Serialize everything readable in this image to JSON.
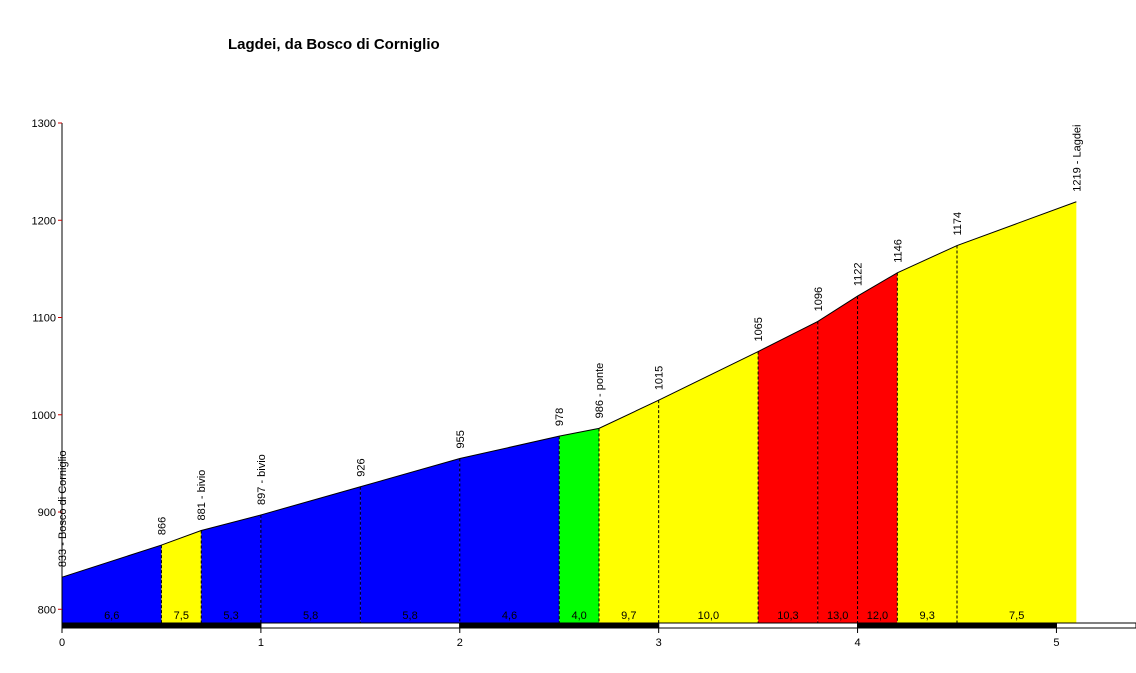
{
  "chart_data": {
    "type": "area",
    "title": "Lagdei, da Bosco di Corniglio",
    "xlabel": "",
    "ylabel": "",
    "xlim": [
      0,
      5.4
    ],
    "ylim": [
      790,
      1300
    ],
    "x_ticks": [
      "0",
      "1",
      "2",
      "3",
      "4",
      "5"
    ],
    "y_ticks": [
      "800",
      "900",
      "1000",
      "1100",
      "1200",
      "1300"
    ],
    "points": [
      {
        "x": 0,
        "y": 833,
        "label": "833 - Bosco di Corniglio"
      },
      {
        "x": 0.5,
        "y": 866,
        "label": "866"
      },
      {
        "x": 0.7,
        "y": 881,
        "label": "881 - bivio"
      },
      {
        "x": 1.0,
        "y": 897,
        "label": "897 - bivio"
      },
      {
        "x": 1.5,
        "y": 926,
        "label": "926"
      },
      {
        "x": 2.0,
        "y": 955,
        "label": "955"
      },
      {
        "x": 2.5,
        "y": 978,
        "label": "978"
      },
      {
        "x": 2.7,
        "y": 986,
        "label": "986 - ponte"
      },
      {
        "x": 3.0,
        "y": 1015,
        "label": "1015"
      },
      {
        "x": 3.5,
        "y": 1065,
        "label": "1065"
      },
      {
        "x": 3.8,
        "y": 1096,
        "label": "1096"
      },
      {
        "x": 4.0,
        "y": 1122,
        "label": "1122"
      },
      {
        "x": 4.2,
        "y": 1146,
        "label": "1146"
      },
      {
        "x": 4.5,
        "y": 1174,
        "label": "1174"
      },
      {
        "x": 5.1,
        "y": 1219,
        "label": "1219 - Lagdei"
      }
    ],
    "segments": [
      {
        "start": 0,
        "end": 0.5,
        "gradient": "6,6",
        "color": "#0000ff"
      },
      {
        "start": 0.5,
        "end": 0.7,
        "gradient": "7,5",
        "color": "#ffff00"
      },
      {
        "start": 0.7,
        "end": 1.0,
        "gradient": "5,3",
        "color": "#0000ff"
      },
      {
        "start": 1.0,
        "end": 1.5,
        "gradient": "5,8",
        "color": "#0000ff"
      },
      {
        "start": 1.5,
        "end": 2.0,
        "gradient": "5,8",
        "color": "#0000ff"
      },
      {
        "start": 2.0,
        "end": 2.5,
        "gradient": "4,6",
        "color": "#0000ff"
      },
      {
        "start": 2.5,
        "end": 2.7,
        "gradient": "4,0",
        "color": "#00ff00"
      },
      {
        "start": 2.7,
        "end": 3.0,
        "gradient": "9,7",
        "color": "#ffff00"
      },
      {
        "start": 3.0,
        "end": 3.5,
        "gradient": "10,0",
        "color": "#ffff00"
      },
      {
        "start": 3.5,
        "end": 3.8,
        "gradient": "10,3",
        "color": "#ff0000"
      },
      {
        "start": 3.8,
        "end": 4.0,
        "gradient": "13,0",
        "color": "#ff0000"
      },
      {
        "start": 4.0,
        "end": 4.2,
        "gradient": "12,0",
        "color": "#ff0000"
      },
      {
        "start": 4.2,
        "end": 4.5,
        "gradient": "9,3",
        "color": "#ffff00"
      },
      {
        "start": 4.5,
        "end": 5.1,
        "gradient": "7,5",
        "color": "#ffff00"
      }
    ],
    "colors": {
      "blue": "#0000ff",
      "yellow": "#ffff00",
      "green": "#00ff00",
      "red": "#ff0000",
      "tick_red": "#cc0000"
    },
    "grid": false,
    "legend": "none"
  }
}
